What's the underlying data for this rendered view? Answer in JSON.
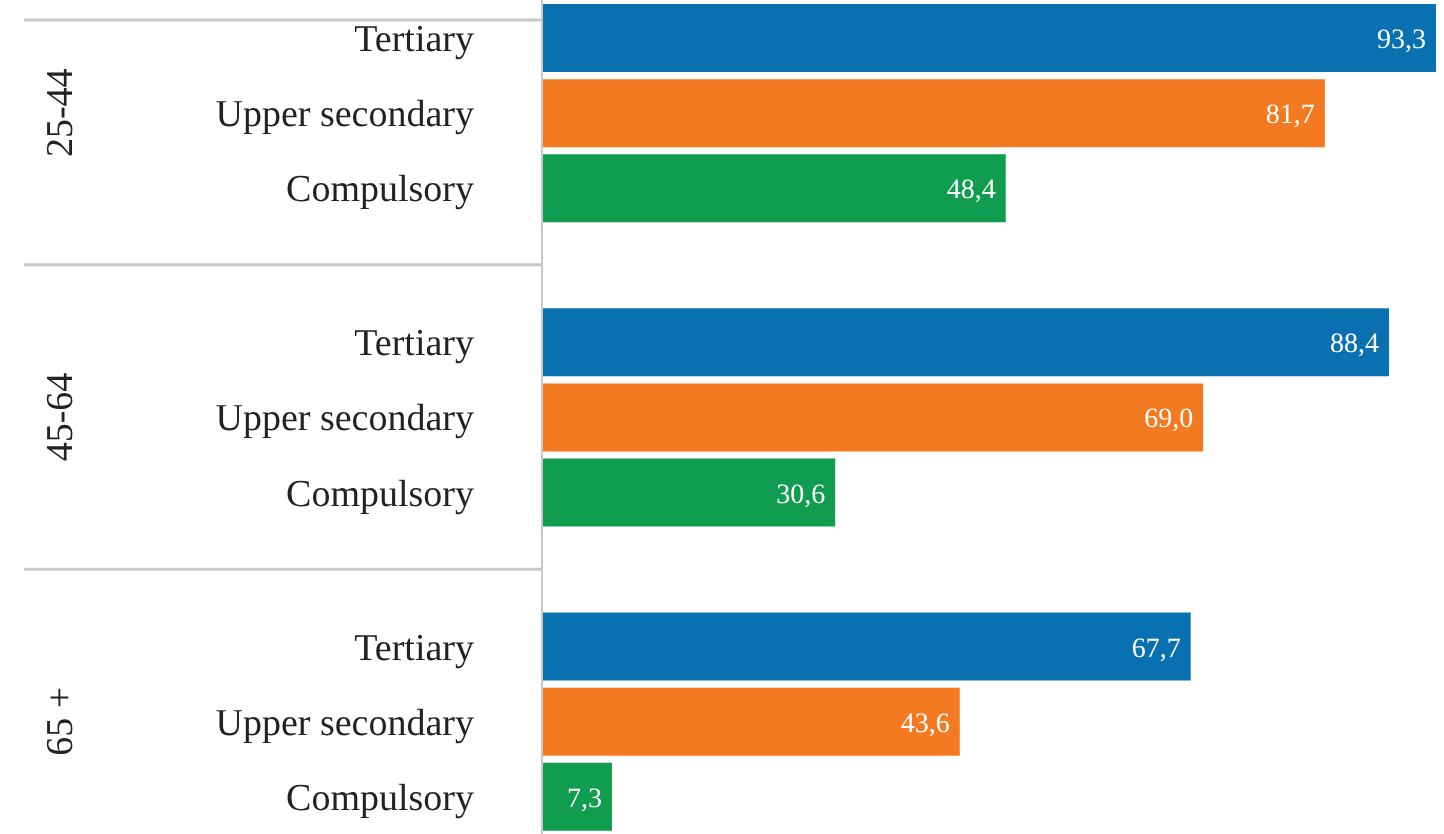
{
  "chart_data": {
    "type": "bar",
    "orientation": "horizontal",
    "categories": [
      "Tertiary",
      "Upper secondary",
      "Compulsory",
      "Tertiary",
      "Upper secondary",
      "Compulsory",
      "Tertiary",
      "Upper secondary",
      "Compulsory"
    ],
    "values": [
      93.3,
      81.7,
      48.4,
      88.4,
      69.0,
      30.6,
      67.7,
      43.6,
      7.3
    ],
    "colors": [
      "#0a71b1",
      "#f37a21",
      "#119d50",
      "#0a71b1",
      "#f37a21",
      "#119d50",
      "#0a71b1",
      "#f37a21",
      "#119d50"
    ],
    "value_labels": [
      "93,3",
      "81,7",
      "48,4",
      "88,4",
      "69,0",
      "30,6",
      "67,7",
      "43,6",
      "7,3"
    ],
    "annotations": [
      "25-44",
      "45-64",
      "65 +"
    ]
  }
}
